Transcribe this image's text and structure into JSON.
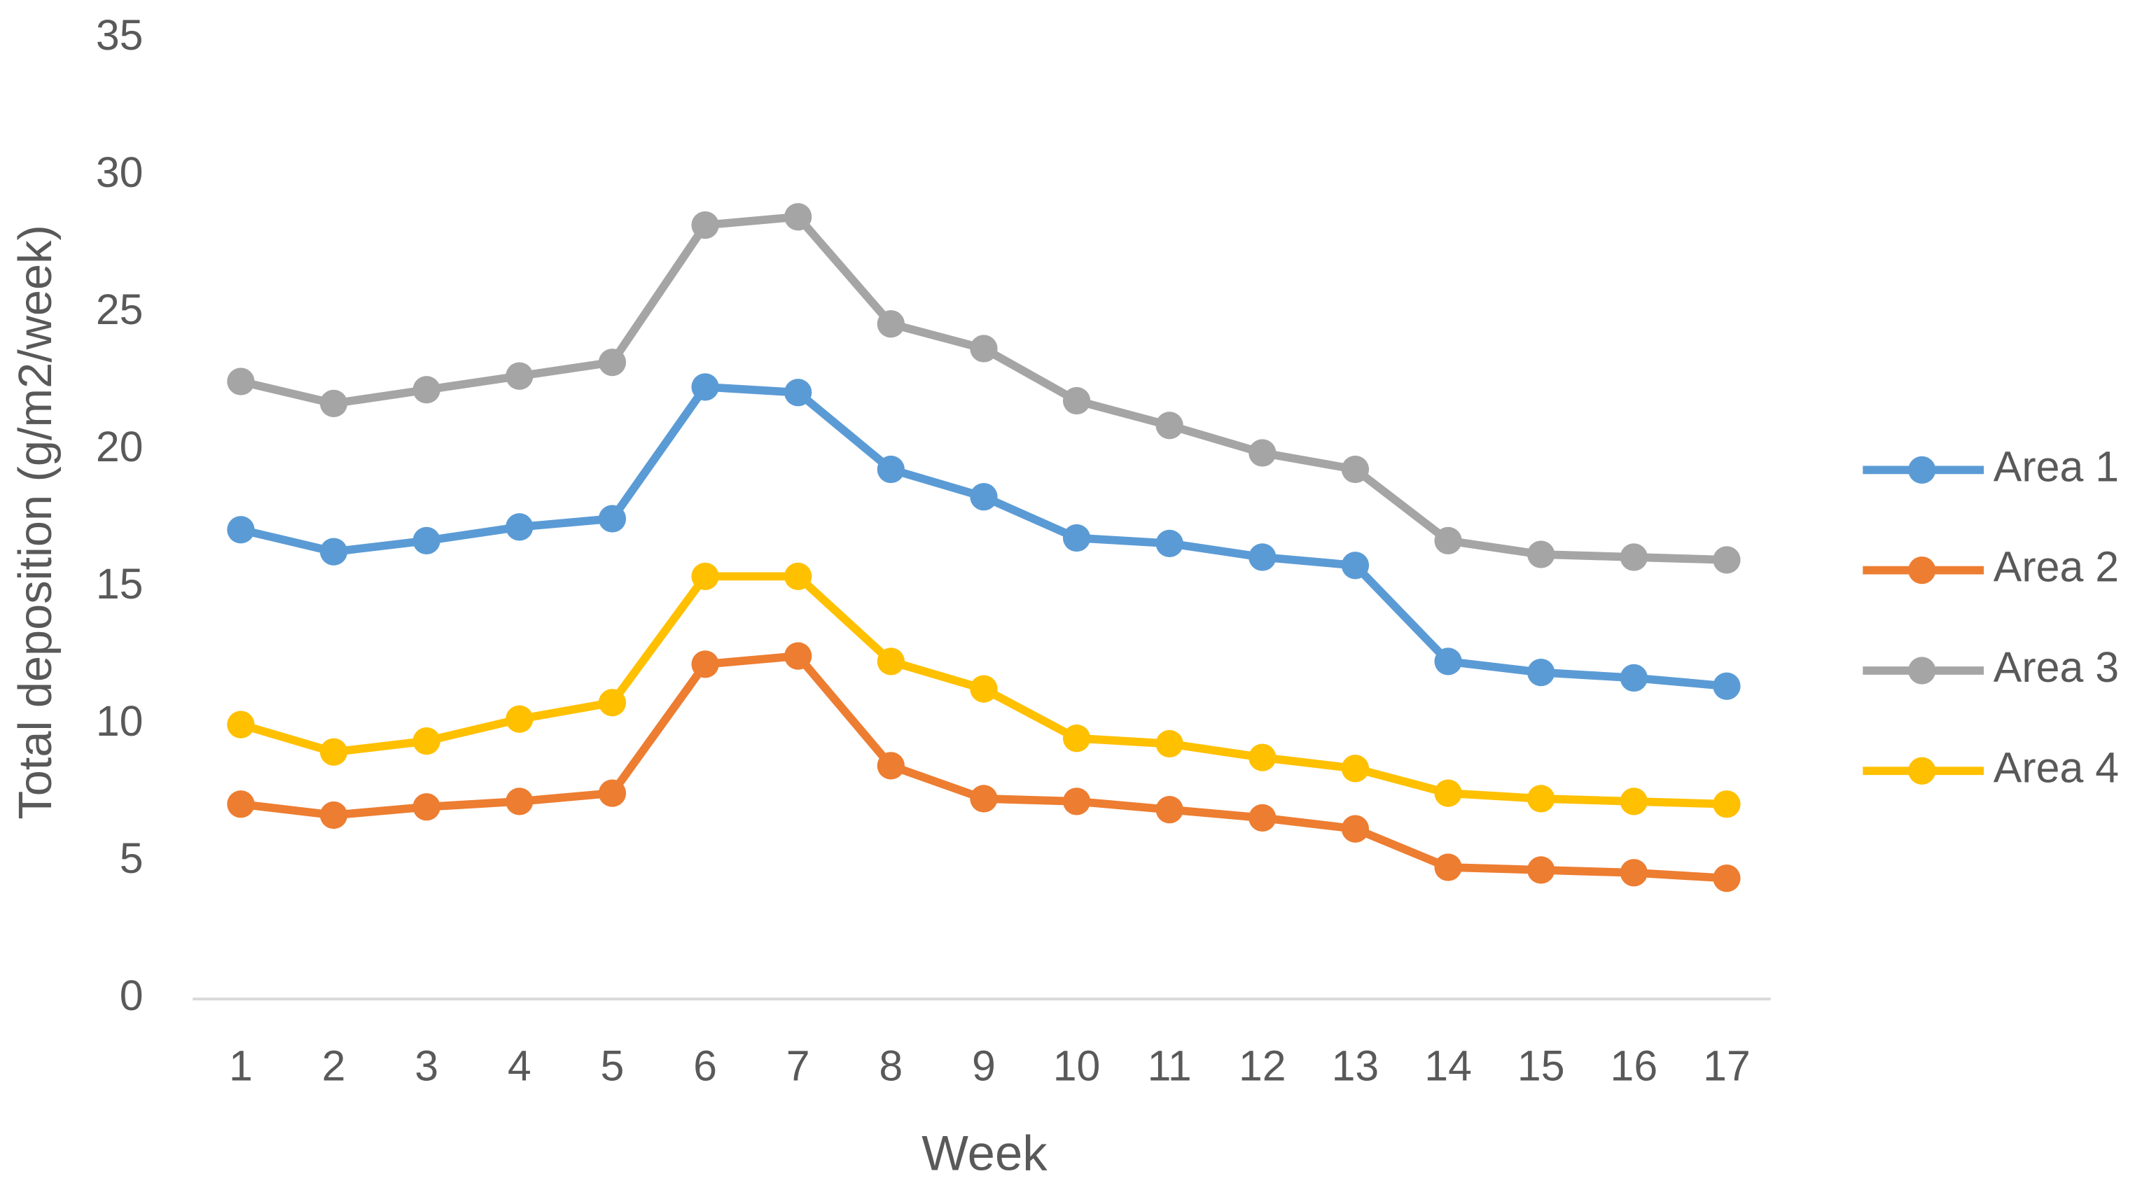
{
  "chart_data": {
    "type": "line",
    "x_label": "Week",
    "y_label": "Total deposition (g/m2/week)",
    "categories": [
      "1",
      "2",
      "3",
      "4",
      "5",
      "6",
      "7",
      "8",
      "9",
      "10",
      "11",
      "12",
      "13",
      "14",
      "15",
      "16",
      "17"
    ],
    "ylim": [
      0,
      35
    ],
    "yticks": [
      0,
      5,
      10,
      15,
      20,
      25,
      30,
      35
    ],
    "grid": false,
    "legend": "right",
    "series": [
      {
        "name": "Area 1",
        "color": "#5b9bd5",
        "values": [
          17.1,
          16.3,
          16.7,
          17.2,
          17.5,
          22.3,
          22.1,
          19.3,
          18.3,
          16.8,
          16.6,
          16.1,
          15.8,
          12.3,
          11.9,
          11.7,
          11.4
        ]
      },
      {
        "name": "Area 2",
        "color": "#ed7d31",
        "values": [
          7.1,
          6.7,
          7.0,
          7.2,
          7.5,
          12.2,
          12.5,
          8.5,
          7.3,
          7.2,
          6.9,
          6.6,
          6.2,
          4.8,
          4.7,
          4.6,
          4.4
        ]
      },
      {
        "name": "Area 3",
        "color": "#a5a5a5",
        "values": [
          22.5,
          21.7,
          22.2,
          22.7,
          23.2,
          28.2,
          28.5,
          24.6,
          23.7,
          21.8,
          20.9,
          19.9,
          19.3,
          16.7,
          16.2,
          16.1,
          16.0
        ]
      },
      {
        "name": "Area 4",
        "color": "#ffc000",
        "values": [
          10.0,
          9.0,
          9.4,
          10.2,
          10.8,
          15.4,
          15.4,
          12.3,
          11.3,
          9.5,
          9.3,
          8.8,
          8.4,
          7.5,
          7.3,
          7.2,
          7.1
        ]
      }
    ]
  }
}
